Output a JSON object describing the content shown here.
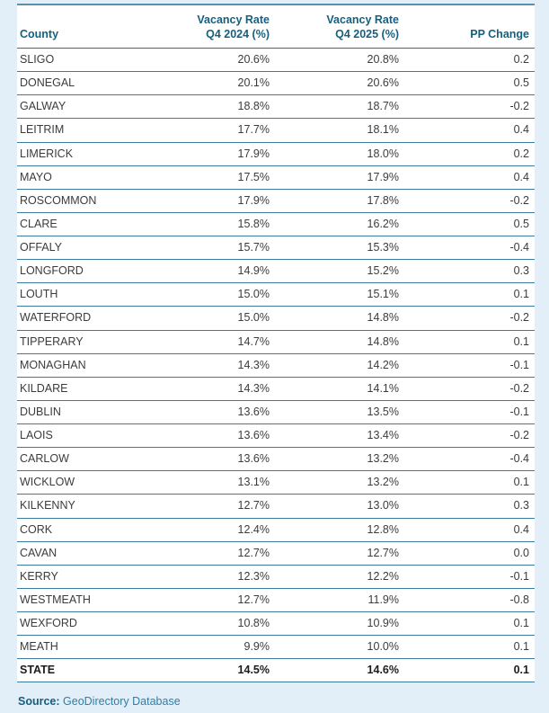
{
  "page": {
    "background_color": "#e2eef8",
    "accent_color": "#16607f",
    "border_color": "#3c7ba0",
    "table_background": "#ffffff"
  },
  "table": {
    "headers": [
      {
        "label": "County"
      },
      {
        "line1": "Vacancy Rate",
        "line2": "Q4 2024 (%)"
      },
      {
        "line1": "Vacancy Rate",
        "line2": "Q4 2025 (%)"
      },
      {
        "label": "PP Change"
      }
    ],
    "rows": [
      {
        "county": "SLIGO",
        "q4_2024": "20.6%",
        "q4_2025": "20.8%",
        "pp_change": "0.2",
        "is_total": false
      },
      {
        "county": "DONEGAL",
        "q4_2024": "20.1%",
        "q4_2025": "20.6%",
        "pp_change": "0.5",
        "is_total": false
      },
      {
        "county": "GALWAY",
        "q4_2024": "18.8%",
        "q4_2025": "18.7%",
        "pp_change": "-0.2",
        "is_total": false
      },
      {
        "county": "LEITRIM",
        "q4_2024": "17.7%",
        "q4_2025": "18.1%",
        "pp_change": "0.4",
        "is_total": false
      },
      {
        "county": "LIMERICK",
        "q4_2024": "17.9%",
        "q4_2025": "18.0%",
        "pp_change": "0.2",
        "is_total": false
      },
      {
        "county": "MAYO",
        "q4_2024": "17.5%",
        "q4_2025": "17.9%",
        "pp_change": "0.4",
        "is_total": false
      },
      {
        "county": "ROSCOMMON",
        "q4_2024": "17.9%",
        "q4_2025": "17.8%",
        "pp_change": "-0.2",
        "is_total": false
      },
      {
        "county": "CLARE",
        "q4_2024": "15.8%",
        "q4_2025": "16.2%",
        "pp_change": "0.5",
        "is_total": false
      },
      {
        "county": "OFFALY",
        "q4_2024": "15.7%",
        "q4_2025": "15.3%",
        "pp_change": "-0.4",
        "is_total": false
      },
      {
        "county": "LONGFORD",
        "q4_2024": "14.9%",
        "q4_2025": "15.2%",
        "pp_change": "0.3",
        "is_total": false
      },
      {
        "county": "LOUTH",
        "q4_2024": "15.0%",
        "q4_2025": "15.1%",
        "pp_change": "0.1",
        "is_total": false
      },
      {
        "county": "WATERFORD",
        "q4_2024": "15.0%",
        "q4_2025": "14.8%",
        "pp_change": "-0.2",
        "is_total": false
      },
      {
        "county": "TIPPERARY",
        "q4_2024": "14.7%",
        "q4_2025": "14.8%",
        "pp_change": "0.1",
        "is_total": false
      },
      {
        "county": "MONAGHAN",
        "q4_2024": "14.3%",
        "q4_2025": "14.2%",
        "pp_change": "-0.1",
        "is_total": false
      },
      {
        "county": "KILDARE",
        "q4_2024": "14.3%",
        "q4_2025": "14.1%",
        "pp_change": "-0.2",
        "is_total": false
      },
      {
        "county": "DUBLIN",
        "q4_2024": "13.6%",
        "q4_2025": "13.5%",
        "pp_change": "-0.1",
        "is_total": false
      },
      {
        "county": "LAOIS",
        "q4_2024": "13.6%",
        "q4_2025": "13.4%",
        "pp_change": "-0.2",
        "is_total": false
      },
      {
        "county": "CARLOW",
        "q4_2024": "13.6%",
        "q4_2025": "13.2%",
        "pp_change": "-0.4",
        "is_total": false
      },
      {
        "county": "WICKLOW",
        "q4_2024": "13.1%",
        "q4_2025": "13.2%",
        "pp_change": "0.1",
        "is_total": false
      },
      {
        "county": "KILKENNY",
        "q4_2024": "12.7%",
        "q4_2025": "13.0%",
        "pp_change": "0.3",
        "is_total": false
      },
      {
        "county": "CORK",
        "q4_2024": "12.4%",
        "q4_2025": "12.8%",
        "pp_change": "0.4",
        "is_total": false
      },
      {
        "county": "CAVAN",
        "q4_2024": "12.7%",
        "q4_2025": "12.7%",
        "pp_change": "0.0",
        "is_total": false
      },
      {
        "county": "KERRY",
        "q4_2024": "12.3%",
        "q4_2025": "12.2%",
        "pp_change": "-0.1",
        "is_total": false
      },
      {
        "county": "WESTMEATH",
        "q4_2024": "12.7%",
        "q4_2025": "11.9%",
        "pp_change": "-0.8",
        "is_total": false
      },
      {
        "county": "WEXFORD",
        "q4_2024": "10.8%",
        "q4_2025": "10.9%",
        "pp_change": "0.1",
        "is_total": false
      },
      {
        "county": "MEATH",
        "q4_2024": "9.9%",
        "q4_2025": "10.0%",
        "pp_change": "0.1",
        "is_total": false
      },
      {
        "county": "STATE",
        "q4_2024": "14.5%",
        "q4_2025": "14.6%",
        "pp_change": "0.1",
        "is_total": true
      }
    ]
  },
  "source": {
    "label": "Source:",
    "text": "GeoDirectory Database"
  }
}
